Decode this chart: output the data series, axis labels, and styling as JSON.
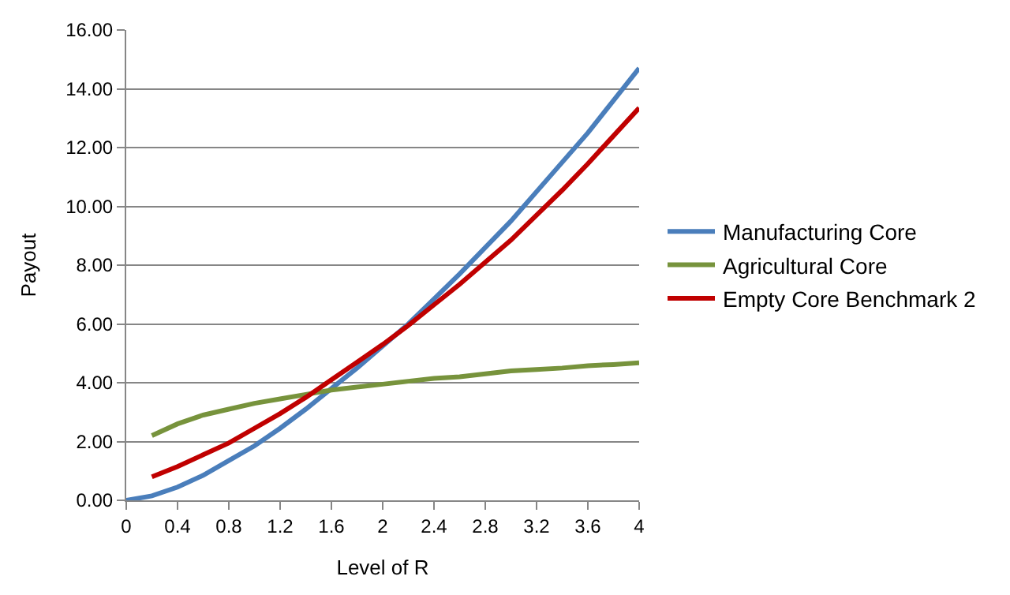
{
  "chart_data": {
    "type": "line",
    "xlabel": "Level of R",
    "ylabel": "Payout",
    "x": [
      0,
      0.2,
      0.4,
      0.6,
      0.8,
      1.0,
      1.2,
      1.4,
      1.6,
      1.8,
      2.0,
      2.2,
      2.4,
      2.6,
      2.8,
      3.0,
      3.2,
      3.4,
      3.6,
      3.8,
      4.0
    ],
    "series": [
      {
        "name": "Manufacturing Core",
        "color": "#4a7ebb",
        "values": [
          0,
          0.15,
          0.45,
          0.85,
          1.35,
          1.85,
          2.45,
          3.1,
          3.8,
          4.5,
          5.25,
          6.0,
          6.85,
          7.7,
          8.6,
          9.5,
          10.5,
          11.5,
          12.5,
          13.6,
          14.7
        ]
      },
      {
        "name": "Agricultural Core",
        "color": "#77933c",
        "values": [
          null,
          2.2,
          2.6,
          2.9,
          3.1,
          3.3,
          3.45,
          3.6,
          3.75,
          3.85,
          3.95,
          4.05,
          4.15,
          4.2,
          4.3,
          4.4,
          4.45,
          4.5,
          4.58,
          4.62,
          4.68
        ]
      },
      {
        "name": "Empty Core Benchmark 2",
        "color": "#c00000",
        "values": [
          null,
          0.8,
          1.15,
          1.55,
          1.95,
          2.45,
          2.95,
          3.5,
          4.1,
          4.7,
          5.3,
          5.95,
          6.65,
          7.35,
          8.1,
          8.85,
          9.7,
          10.55,
          11.45,
          12.4,
          13.35
        ]
      }
    ],
    "xlim": [
      0,
      4
    ],
    "xticks": [
      0,
      0.4,
      0.8,
      1.2,
      1.6,
      2,
      2.4,
      2.8,
      3.2,
      3.6,
      4
    ],
    "ylim": [
      0,
      16
    ],
    "yticks": [
      {
        "value": 0,
        "label": "0.00"
      },
      {
        "value": 2,
        "label": "2.00"
      },
      {
        "value": 4,
        "label": "4.00"
      },
      {
        "value": 6,
        "label": "6.00"
      },
      {
        "value": 8,
        "label": "8.00"
      },
      {
        "value": 10,
        "label": "10.00"
      },
      {
        "value": 12,
        "label": "12.00"
      },
      {
        "value": 14,
        "label": "14.00"
      },
      {
        "value": 16,
        "label": "16.00"
      }
    ],
    "grid": "y",
    "legend": "right",
    "marker": "none",
    "line_style": "solid"
  }
}
